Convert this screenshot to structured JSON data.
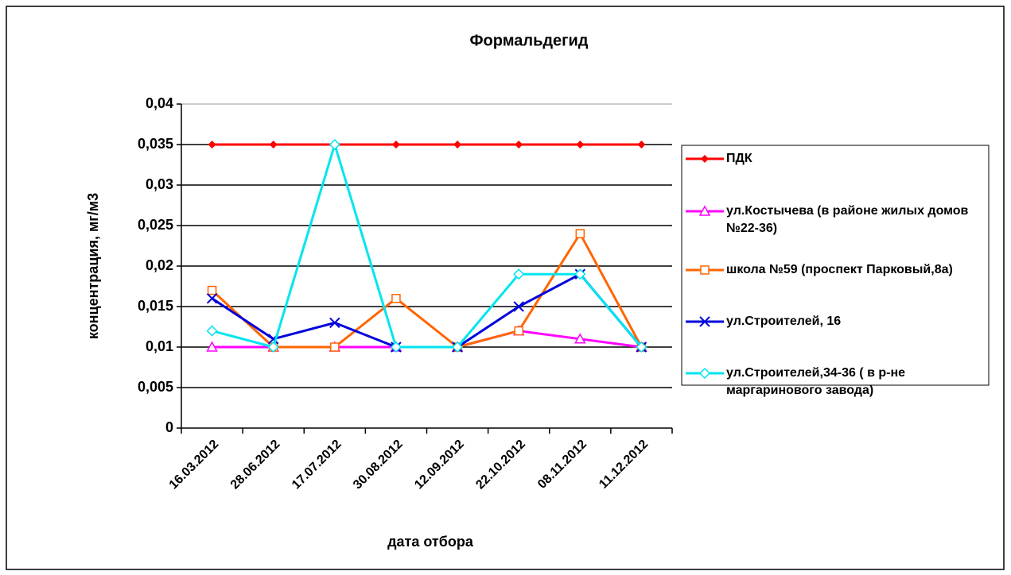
{
  "chart_data": {
    "type": "line",
    "title": "Формальдегид",
    "x_label": "дата отбора",
    "y_label": "концентрация, мг/м3",
    "categories": [
      "16.03.2012",
      "28.06.2012",
      "17.07.2012",
      "30.08.2012",
      "12.09.2012",
      "22.10.2012",
      "08.11.2012",
      "11.12.2012"
    ],
    "ylim": [
      0,
      0.04
    ],
    "yticks": [
      0,
      {
        "value": 0.005,
        "label": "0,005"
      },
      {
        "value": 0.01,
        "label": "0,01"
      },
      {
        "value": 0.015,
        "label": "0,015"
      },
      {
        "value": 0.02,
        "label": "0,02"
      },
      {
        "value": 0.025,
        "label": "0,025"
      },
      {
        "value": 0.03,
        "label": "0,03"
      },
      {
        "value": 0.035,
        "label": "0,035"
      },
      {
        "value": 0.04,
        "label": "0,04"
      }
    ],
    "grid": true,
    "legend": "right",
    "series": [
      {
        "name": "ПДК",
        "color": "#ff0000",
        "marker": "diamond-filled",
        "values": [
          0.035,
          0.035,
          0.035,
          0.035,
          0.035,
          0.035,
          0.035,
          0.035
        ]
      },
      {
        "name": "ул.Костычева (в районе жилых домов №22-36)",
        "color": "#ff00ff",
        "marker": "triangle",
        "values": [
          0.01,
          0.01,
          0.01,
          0.01,
          0.01,
          0.012,
          0.011,
          0.01
        ]
      },
      {
        "name": "школа №59 (проспект Парковый,8а)",
        "color": "#ff6600",
        "marker": "square",
        "values": [
          0.017,
          0.01,
          0.01,
          0.016,
          0.01,
          0.012,
          0.024,
          0.01
        ]
      },
      {
        "name": "ул.Строителей, 16",
        "color": "#0000dd",
        "marker": "x",
        "values": [
          0.016,
          0.011,
          0.013,
          0.01,
          0.01,
          0.015,
          0.019,
          0.01
        ]
      },
      {
        "name": "ул.Строителей,34-36 ( в р-не маргаринового завода)",
        "color": "#00e5ee",
        "marker": "diamond",
        "values": [
          0.012,
          0.01,
          0.035,
          0.01,
          0.01,
          0.019,
          0.019,
          0.01
        ]
      }
    ]
  }
}
